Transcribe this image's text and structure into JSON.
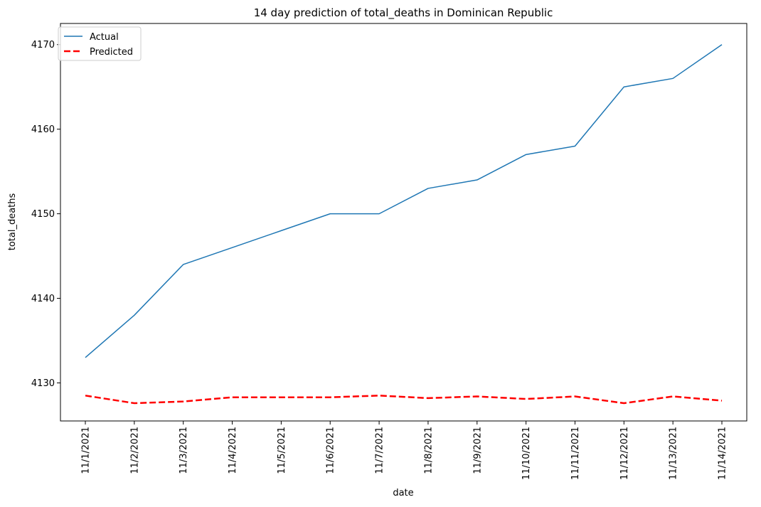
{
  "chart_data": {
    "type": "line",
    "title": "14 day prediction of total_deaths in Dominican Republic",
    "xlabel": "date",
    "ylabel": "total_deaths",
    "categories": [
      "11/1/2021",
      "11/2/2021",
      "11/3/2021",
      "11/4/2021",
      "11/5/2021",
      "11/6/2021",
      "11/7/2021",
      "11/8/2021",
      "11/9/2021",
      "11/10/2021",
      "11/11/2021",
      "11/12/2021",
      "11/13/2021",
      "11/14/2021"
    ],
    "ylim": [
      4125.5,
      4172.5
    ],
    "yticks": [
      4130,
      4140,
      4150,
      4160,
      4170
    ],
    "grid": false,
    "legend_position": "upper left",
    "series": [
      {
        "name": "Actual",
        "color": "#1f77b4",
        "style": "solid",
        "values": [
          4133,
          4138,
          4144,
          4146,
          4148,
          4150,
          4150,
          4153,
          4154,
          4157,
          4158,
          4165,
          4166,
          4170
        ]
      },
      {
        "name": "Predicted",
        "color": "#ff0000",
        "style": "dashed",
        "values": [
          4128.5,
          4127.6,
          4127.8,
          4128.3,
          4128.3,
          4128.3,
          4128.5,
          4128.2,
          4128.4,
          4128.1,
          4128.4,
          4127.6,
          4128.4,
          4127.9
        ]
      }
    ]
  }
}
